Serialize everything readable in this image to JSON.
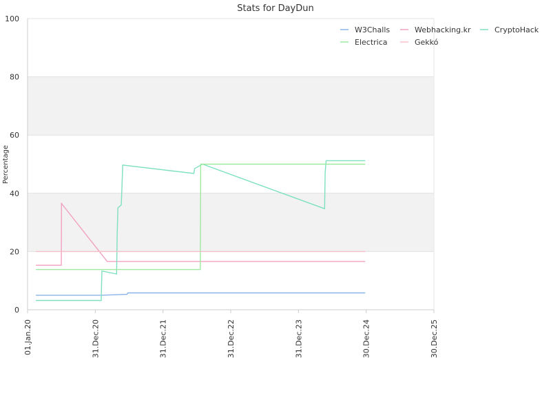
{
  "chart_data": {
    "type": "line",
    "title": "Stats for DayDun",
    "xlabel": "",
    "ylabel": "Percentage",
    "ylim": [
      0,
      100
    ],
    "xlim": [
      "2020-01-01",
      "2025-12-30"
    ],
    "x_ticks": [
      "01.Jan.20",
      "31.Dec.20",
      "31.Dec.21",
      "31.Dec.22",
      "31.Dec.23",
      "30.Dec.24",
      "30.Dec.25"
    ],
    "y_ticks": [
      0,
      20,
      40,
      60,
      80,
      100
    ],
    "grid": "horizontal bands",
    "legend_position": "top-right",
    "series": [
      {
        "name": "W3Challs",
        "color": "#8ab4e8",
        "points": [
          [
            "2020-02-15",
            5.0
          ],
          [
            "2021-02-01",
            5.0
          ],
          [
            "2021-06-20",
            5.3
          ],
          [
            "2021-06-25",
            5.8
          ],
          [
            "2024-12-25",
            5.8
          ]
        ]
      },
      {
        "name": "Webhacking.kr",
        "color": "#f2a0c0",
        "points": [
          [
            "2020-02-15",
            15.3
          ],
          [
            "2020-07-01",
            15.3
          ],
          [
            "2020-07-02",
            36.5
          ],
          [
            "2021-03-05",
            16.6
          ],
          [
            "2024-12-25",
            16.6
          ]
        ]
      },
      {
        "name": "CryptoHack",
        "color": "#7ee0c0",
        "points": [
          [
            "2020-02-15",
            3.2
          ],
          [
            "2021-02-01",
            3.2
          ],
          [
            "2021-02-03",
            9.0
          ],
          [
            "2021-02-05",
            13.3
          ],
          [
            "2021-04-25",
            12.3
          ],
          [
            "2021-04-28",
            25.5
          ],
          [
            "2021-05-02",
            35.0
          ],
          [
            "2021-05-20",
            36.0
          ],
          [
            "2021-05-28",
            49.7
          ],
          [
            "2022-06-15",
            46.8
          ],
          [
            "2022-06-20",
            48.5
          ],
          [
            "2022-08-01",
            50.0
          ],
          [
            "2024-05-20",
            34.7
          ],
          [
            "2024-05-23",
            47.0
          ],
          [
            "2024-05-28",
            51.2
          ],
          [
            "2024-12-25",
            51.2
          ]
        ]
      },
      {
        "name": "Electrica",
        "color": "#a0e8a0",
        "points": [
          [
            "2020-02-15",
            13.8
          ],
          [
            "2022-07-20",
            13.8
          ],
          [
            "2022-07-22",
            50.0
          ],
          [
            "2024-12-25",
            50.0
          ]
        ]
      },
      {
        "name": "Gekkó",
        "color": "#f7c0c8",
        "points": [
          [
            "2020-02-15",
            20.0
          ],
          [
            "2024-12-25",
            20.0
          ]
        ]
      }
    ]
  }
}
